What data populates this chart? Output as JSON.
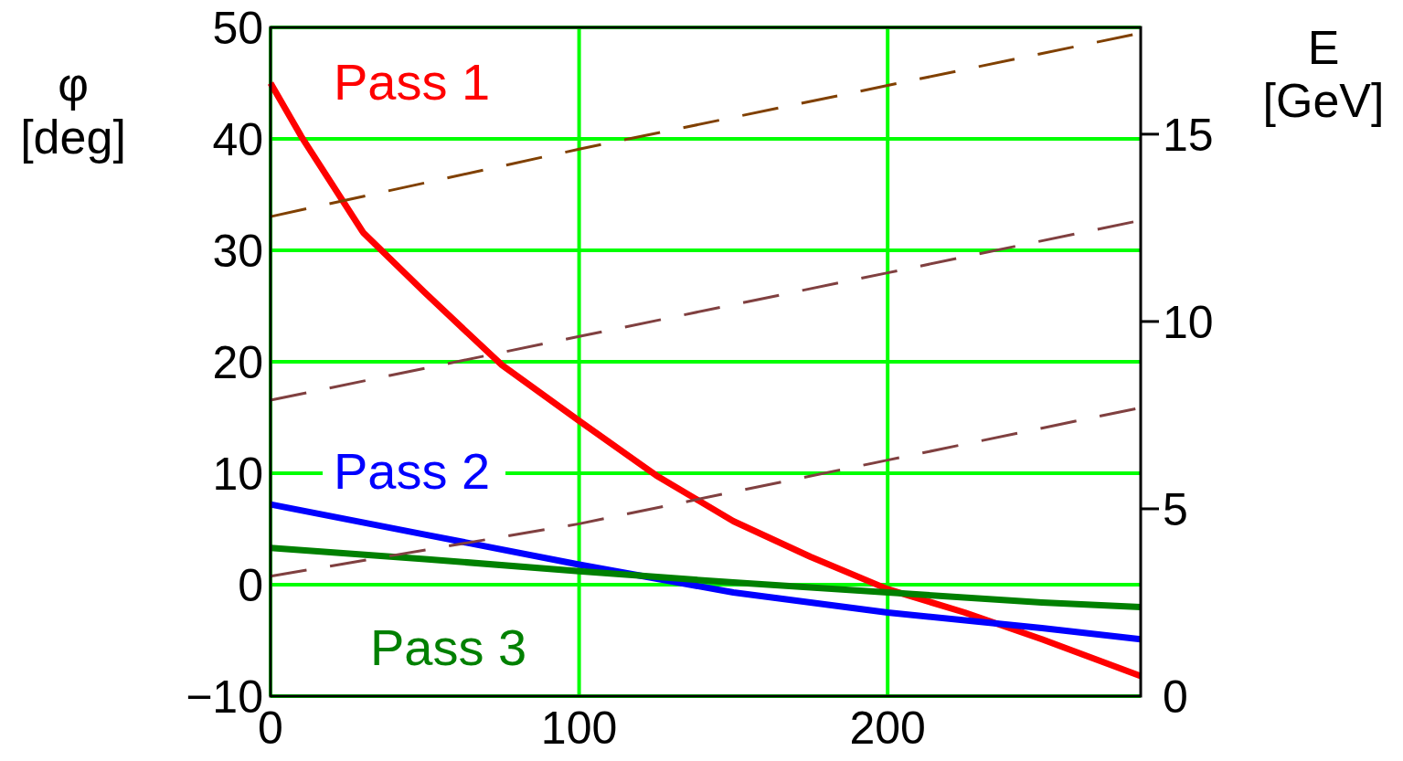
{
  "chart_data": {
    "type": "line",
    "ylabel": "φ\n[deg]",
    "y2label": "E\n[GeV]",
    "xlim": [
      0,
      282
    ],
    "xticks": [
      0,
      100,
      200
    ],
    "ylim": [
      -10,
      50
    ],
    "yticks": [
      {
        "value": -10,
        "label": "−10"
      },
      0,
      10,
      20,
      30,
      40,
      50
    ],
    "y2lim": [
      0,
      17.85
    ],
    "y2ticks": [
      0,
      5,
      10,
      15
    ],
    "grid": true,
    "series": [
      {
        "name": "Pass 1",
        "color": "#ff0000",
        "line_style": "solid",
        "x": [
          0,
          10,
          30,
          50,
          75,
          100,
          125,
          150,
          175,
          200,
          225,
          250,
          282
        ],
        "values": [
          45,
          40.2,
          31.6,
          26.2,
          19.7,
          14.7,
          9.8,
          5.7,
          2.5,
          -0.4,
          -2.5,
          -4.9,
          -8.2
        ]
      },
      {
        "name": "Pass 2",
        "color": "#0000ff",
        "line_style": "solid",
        "x": [
          0,
          50,
          100,
          150,
          200,
          250,
          282
        ],
        "values": [
          7.2,
          4.5,
          1.8,
          -0.7,
          -2.5,
          -3.9,
          -4.9
        ]
      },
      {
        "name": "Pass 3",
        "color": "#008000",
        "line_style": "solid",
        "x": [
          0,
          50,
          100,
          150,
          200,
          250,
          282
        ],
        "values": [
          3.3,
          2.3,
          1.2,
          0.2,
          -0.7,
          -1.6,
          -2
        ]
      },
      {
        "color": "#804000",
        "axis": "y2",
        "line_style": "dashed",
        "x": [
          0,
          100,
          200,
          282
        ],
        "values": [
          12.8,
          14.6,
          16.3,
          17.7
        ]
      },
      {
        "color": "#804040",
        "axis": "y2",
        "line_style": "dashed",
        "x": [
          0,
          100,
          200,
          282
        ],
        "values": [
          7.9,
          9.6,
          11.3,
          12.7
        ]
      },
      {
        "color": "#804040",
        "axis": "y2",
        "line_style": "dashed",
        "x": [
          0,
          100,
          200,
          282
        ],
        "values": [
          3.2,
          4.6,
          6.3,
          7.7
        ]
      }
    ]
  }
}
